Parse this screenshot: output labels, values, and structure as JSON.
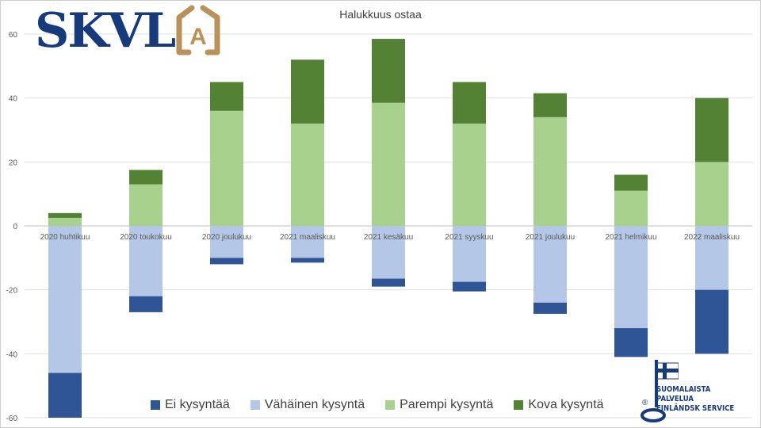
{
  "chart_data": {
    "type": "bar",
    "stacked": true,
    "title": "Halukkuus ostaa",
    "xlabel": "",
    "ylabel": "",
    "ylim": [
      -60,
      60
    ],
    "yticks": [
      -60,
      -40,
      -20,
      0,
      20,
      40,
      60
    ],
    "grid": true,
    "legend_position": "bottom",
    "categories": [
      "2020 huhtikuu",
      "2020 toukokuu",
      "2020 joulukuu",
      "2021 maaliskuu",
      "2021 kesäkuu",
      "2021 syyskuu",
      "2021 joulukuu",
      "2021 helmikuu",
      "2022 maaliskuu"
    ],
    "series": [
      {
        "name": "Ei kysyntää",
        "color": "#2f5597",
        "values": [
          -14,
          -5,
          -2,
          -1.5,
          -2.5,
          -3,
          -3.5,
          -9,
          -20
        ]
      },
      {
        "name": "Vähäinen kysyntä",
        "color": "#b4c7e7",
        "values": [
          -46,
          -22,
          -10,
          -10,
          -16.5,
          -17.5,
          -24,
          -32,
          -20
        ]
      },
      {
        "name": "Parempi kysyntä",
        "color": "#a9d18e",
        "values": [
          2.5,
          13,
          36,
          32,
          38.5,
          32,
          34,
          11,
          20
        ]
      },
      {
        "name": "Kova kysyntä",
        "color": "#548235",
        "values": [
          1.5,
          4.5,
          9,
          20,
          20,
          13,
          7.5,
          5,
          20
        ]
      }
    ]
  },
  "logo": {
    "text": "SKVL",
    "emblem_letter": "A"
  },
  "badge": {
    "line1": "SUOMALAISTA PALVELUA",
    "line2": "FINLÄNDSK SERVICE",
    "mark": "®"
  }
}
